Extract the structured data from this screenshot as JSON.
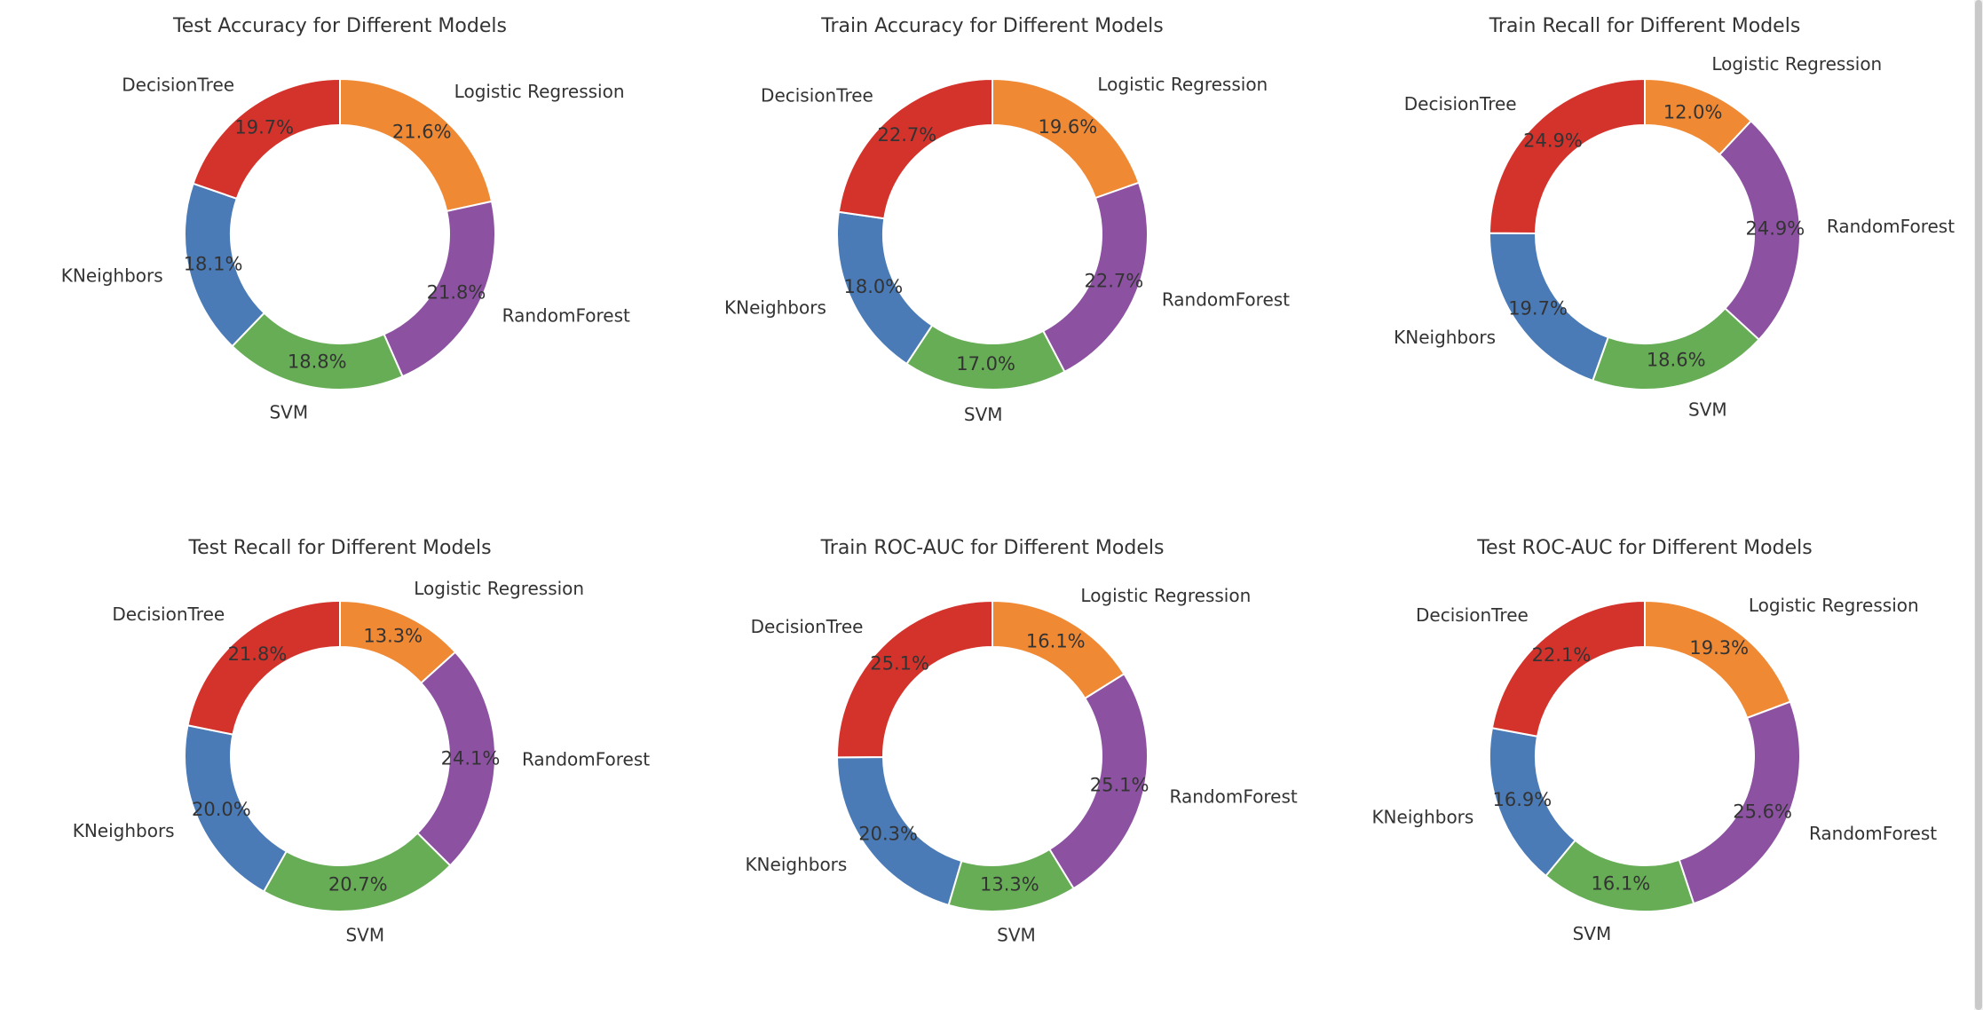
{
  "colors": {
    "Logistic Regression": "#f08934",
    "RandomForest": "#8c52a1",
    "SVM": "#66ad55",
    "KNeighbors": "#4a7bb7",
    "DecisionTree": "#d4332c"
  },
  "chart_data": [
    {
      "type": "pie",
      "title": "Test Accuracy for Different Models",
      "labels": [
        "Logistic Regression",
        "RandomForest",
        "SVM",
        "KNeighbors",
        "DecisionTree"
      ],
      "values": [
        21.6,
        21.8,
        18.8,
        18.1,
        19.7
      ],
      "value_labels": [
        "21.6%",
        "21.8%",
        "18.8%",
        "18.1%",
        "19.7%"
      ]
    },
    {
      "type": "pie",
      "title": "Train Accuracy for Different Models",
      "labels": [
        "Logistic Regression",
        "RandomForest",
        "SVM",
        "KNeighbors",
        "DecisionTree"
      ],
      "values": [
        19.6,
        22.7,
        17.0,
        18.0,
        22.7
      ],
      "value_labels": [
        "19.6%",
        "22.7%",
        "17.0%",
        "18.0%",
        "22.7%"
      ]
    },
    {
      "type": "pie",
      "title": "Train Recall for Different Models",
      "labels": [
        "Logistic Regression",
        "RandomForest",
        "SVM",
        "KNeighbors",
        "DecisionTree"
      ],
      "values": [
        12.0,
        24.9,
        18.6,
        19.7,
        24.9
      ],
      "value_labels": [
        "12.0%",
        "24.9%",
        "18.6%",
        "19.7%",
        "24.9%"
      ]
    },
    {
      "type": "pie",
      "title": "Test Recall for Different Models",
      "labels": [
        "Logistic Regression",
        "RandomForest",
        "SVM",
        "KNeighbors",
        "DecisionTree"
      ],
      "values": [
        13.3,
        24.1,
        20.7,
        20.0,
        21.8
      ],
      "value_labels": [
        "13.3%",
        "24.1%",
        "20.7%",
        "20.0%",
        "21.8%"
      ]
    },
    {
      "type": "pie",
      "title": "Train ROC-AUC for Different Models",
      "labels": [
        "Logistic Regression",
        "RandomForest",
        "SVM",
        "KNeighbors",
        "DecisionTree"
      ],
      "values": [
        16.1,
        25.1,
        13.3,
        20.3,
        25.1
      ],
      "value_labels": [
        "16.1%",
        "25.1%",
        "13.3%",
        "20.3%",
        "25.1%"
      ]
    },
    {
      "type": "pie",
      "title": "Test ROC-AUC for Different Models",
      "labels": [
        "Logistic Regression",
        "RandomForest",
        "SVM",
        "KNeighbors",
        "DecisionTree"
      ],
      "values": [
        19.3,
        25.6,
        16.1,
        16.9,
        22.1
      ],
      "value_labels": [
        "19.3%",
        "25.6%",
        "16.1%",
        "16.9%",
        "22.1%"
      ]
    }
  ]
}
